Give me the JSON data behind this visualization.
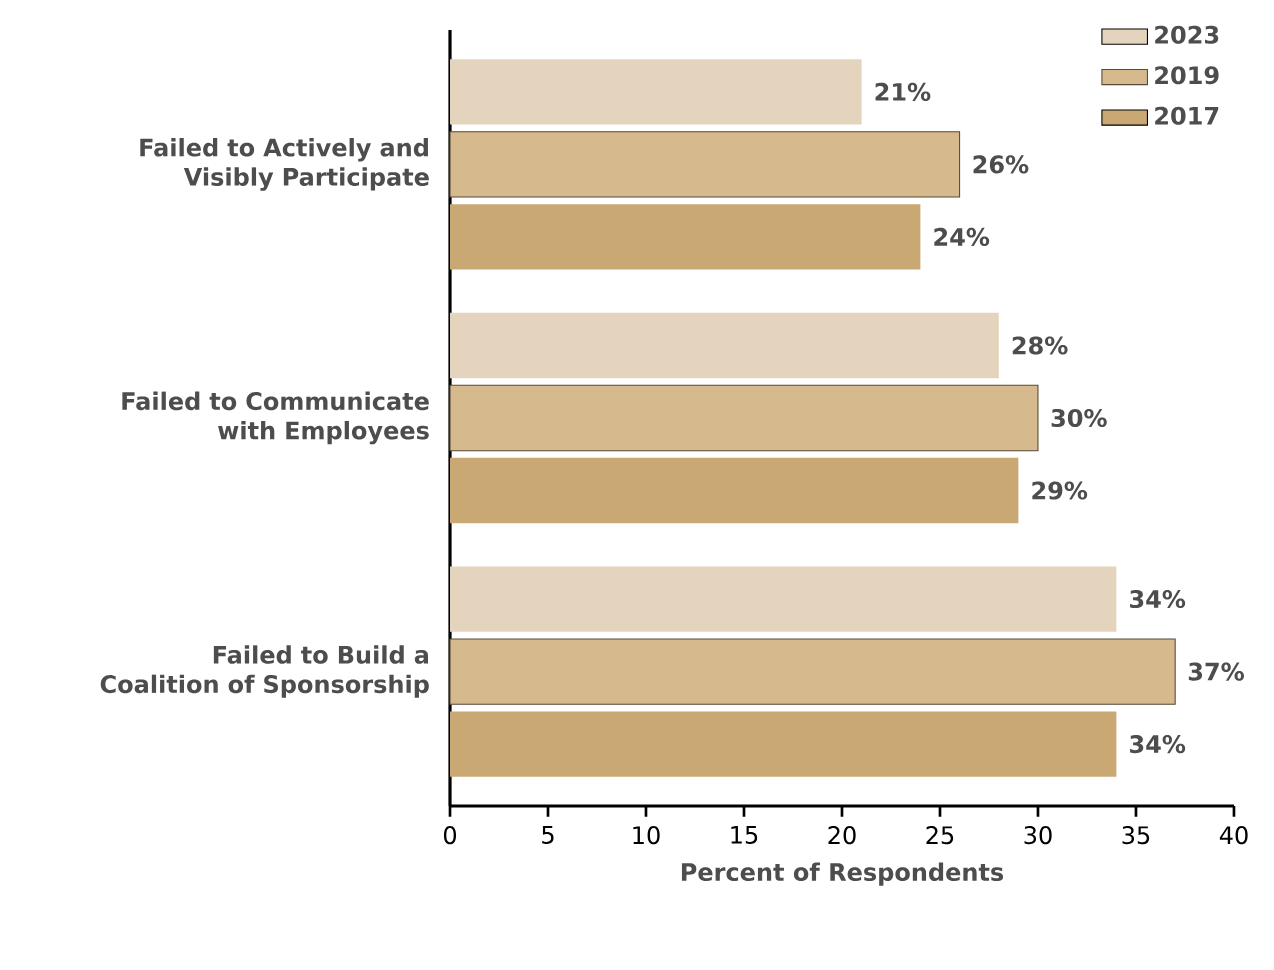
{
  "chart_data": {
    "type": "bar",
    "orientation": "horizontal",
    "xlabel": "Percent of Respondents",
    "categories": [
      "Failed to Actively and Visibly Participate",
      "Failed to Communicate with Employees",
      "Failed to Build a Coalition of Sponsorship"
    ],
    "series": [
      {
        "name": "2023",
        "color": "#e4d4bd",
        "values": [
          21,
          28,
          34
        ],
        "value_labels": [
          "21%",
          "28%",
          "34%"
        ]
      },
      {
        "name": "2019",
        "color": "#d6b98c",
        "values": [
          26,
          30,
          37
        ],
        "value_labels": [
          "26%",
          "30%",
          "37%"
        ]
      },
      {
        "name": "2017",
        "color": "#c9a873",
        "values": [
          24,
          29,
          34
        ],
        "value_labels": [
          "24%",
          "29%",
          "34%"
        ]
      }
    ],
    "xlim": [
      0,
      40
    ],
    "xticks": [
      0,
      5,
      10,
      15,
      20,
      25,
      30,
      35,
      40
    ],
    "grid": false,
    "legend": "top right"
  }
}
